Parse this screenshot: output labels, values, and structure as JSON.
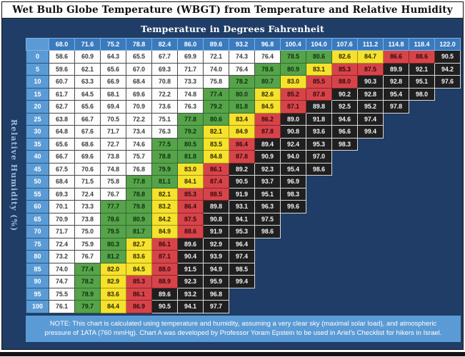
{
  "title": "Wet Bulb Globe Temperature (WBGT) from Temperature and Relative Humidity",
  "note": "NOTE: This chart is calculated using temperature and humidity, assuming a very clear sky (maximal solar load), and atmospheric pressure of 1ATA (760 mmHg). Chart A was developed by Professor Yoram Epstein to be used in Ariel's Checklist for hikers in Israel.",
  "colors": {
    "navy_background": "#1F3D66",
    "row_header_blue": "#5B9BD5",
    "column_header_blue": "#3A7ABD",
    "note_background": "#5B9BD5",
    "cell_white": "#FDFDFD",
    "cell_green": "#56A34A",
    "cell_yellow": "#F6E12D",
    "cell_red": "#D6444A",
    "cell_black": "#1F1F1F"
  },
  "chart_data": {
    "type": "table",
    "title": "Wet Bulb Globe Temperature (WBGT) from Temperature and Relative Humidity",
    "x_header": "Temperature in Degrees Fahrenheit",
    "y_header": "Relative Humidity (%)",
    "color_key": {
      "w": "#FDFDFD",
      "g": "#56A34A",
      "y": "#F6E12D",
      "r": "#D6444A",
      "k": "#1F1F1F"
    },
    "columns_f": [
      "68.0",
      "71.6",
      "75.2",
      "78.8",
      "82.4",
      "86.0",
      "89.6",
      "93.2",
      "96.8",
      "100.4",
      "104.0",
      "107.6",
      "111.2",
      "114.8",
      "118.4",
      "122.0"
    ],
    "rows": [
      {
        "rh": "0",
        "cells": [
          [
            "58.6",
            "w"
          ],
          [
            "60.9",
            "w"
          ],
          [
            "64.3",
            "w"
          ],
          [
            "65.5",
            "w"
          ],
          [
            "67.7",
            "w"
          ],
          [
            "69.9",
            "w"
          ],
          [
            "72.1",
            "w"
          ],
          [
            "74.3",
            "w"
          ],
          [
            "76.4",
            "w"
          ],
          [
            "78.5",
            "g"
          ],
          [
            "80.6",
            "g"
          ],
          [
            "82.6",
            "y"
          ],
          [
            "84.7",
            "y"
          ],
          [
            "86.6",
            "r"
          ],
          [
            "88.6",
            "r"
          ],
          [
            "90.5",
            "k"
          ]
        ]
      },
      {
        "rh": "5",
        "cells": [
          [
            "59.6",
            "w"
          ],
          [
            "62.1",
            "w"
          ],
          [
            "65.6",
            "w"
          ],
          [
            "67.0",
            "w"
          ],
          [
            "69.3",
            "w"
          ],
          [
            "71.7",
            "w"
          ],
          [
            "74.0",
            "w"
          ],
          [
            "76.4",
            "w"
          ],
          [
            "78.6",
            "g"
          ],
          [
            "80.9",
            "g"
          ],
          [
            "83.1",
            "y"
          ],
          [
            "85.3",
            "r"
          ],
          [
            "87.5",
            "r"
          ],
          [
            "89.9",
            "k"
          ],
          [
            "92.1",
            "k"
          ],
          [
            "94.2",
            "k"
          ]
        ]
      },
      {
        "rh": "10",
        "cells": [
          [
            "60.7",
            "w"
          ],
          [
            "63.3",
            "w"
          ],
          [
            "66.9",
            "w"
          ],
          [
            "68.4",
            "w"
          ],
          [
            "70.8",
            "w"
          ],
          [
            "73.3",
            "w"
          ],
          [
            "75.8",
            "w"
          ],
          [
            "78.2",
            "g"
          ],
          [
            "80.7",
            "g"
          ],
          [
            "83.0",
            "y"
          ],
          [
            "85.5",
            "r"
          ],
          [
            "88.0",
            "r"
          ],
          [
            "90.3",
            "k"
          ],
          [
            "92.8",
            "k"
          ],
          [
            "95.1",
            "k"
          ],
          [
            "97.6",
            "k"
          ]
        ]
      },
      {
        "rh": "15",
        "cells": [
          [
            "61.7",
            "w"
          ],
          [
            "64.5",
            "w"
          ],
          [
            "68.1",
            "w"
          ],
          [
            "69.6",
            "w"
          ],
          [
            "72.2",
            "w"
          ],
          [
            "74.8",
            "w"
          ],
          [
            "77.4",
            "g"
          ],
          [
            "80.0",
            "g"
          ],
          [
            "82.6",
            "y"
          ],
          [
            "85.2",
            "r"
          ],
          [
            "87.8",
            "r"
          ],
          [
            "90.2",
            "k"
          ],
          [
            "92.8",
            "k"
          ],
          [
            "95.4",
            "k"
          ],
          [
            "98.0",
            "k"
          ]
        ]
      },
      {
        "rh": "20",
        "cells": [
          [
            "62.7",
            "w"
          ],
          [
            "65.6",
            "w"
          ],
          [
            "69.4",
            "w"
          ],
          [
            "70.9",
            "w"
          ],
          [
            "73.6",
            "w"
          ],
          [
            "76.3",
            "w"
          ],
          [
            "79.2",
            "g"
          ],
          [
            "81.8",
            "g"
          ],
          [
            "84.5",
            "y"
          ],
          [
            "87.1",
            "r"
          ],
          [
            "89.8",
            "k"
          ],
          [
            "92.5",
            "k"
          ],
          [
            "95.2",
            "k"
          ],
          [
            "97.8",
            "k"
          ]
        ]
      },
      {
        "rh": "25",
        "cells": [
          [
            "63.8",
            "w"
          ],
          [
            "66.7",
            "w"
          ],
          [
            "70.5",
            "w"
          ],
          [
            "72.2",
            "w"
          ],
          [
            "75.1",
            "w"
          ],
          [
            "77.8",
            "g"
          ],
          [
            "80.6",
            "g"
          ],
          [
            "83.4",
            "y"
          ],
          [
            "86.2",
            "r"
          ],
          [
            "89.0",
            "k"
          ],
          [
            "91.8",
            "k"
          ],
          [
            "94.6",
            "k"
          ],
          [
            "97.4",
            "k"
          ]
        ]
      },
      {
        "rh": "30",
        "cells": [
          [
            "64.8",
            "w"
          ],
          [
            "67.6",
            "w"
          ],
          [
            "71.7",
            "w"
          ],
          [
            "73.4",
            "w"
          ],
          [
            "76.3",
            "w"
          ],
          [
            "79.2",
            "g"
          ],
          [
            "82.1",
            "y"
          ],
          [
            "84.9",
            "y"
          ],
          [
            "87.8",
            "r"
          ],
          [
            "90.8",
            "k"
          ],
          [
            "93.6",
            "k"
          ],
          [
            "96.6",
            "k"
          ],
          [
            "99.4",
            "k"
          ]
        ]
      },
      {
        "rh": "35",
        "cells": [
          [
            "65.6",
            "w"
          ],
          [
            "68.6",
            "w"
          ],
          [
            "72.7",
            "w"
          ],
          [
            "74.6",
            "w"
          ],
          [
            "77.5",
            "g"
          ],
          [
            "80.5",
            "g"
          ],
          [
            "83.5",
            "y"
          ],
          [
            "86.4",
            "r"
          ],
          [
            "89.4",
            "k"
          ],
          [
            "92.4",
            "k"
          ],
          [
            "95.3",
            "k"
          ],
          [
            "98.3",
            "k"
          ]
        ]
      },
      {
        "rh": "40",
        "cells": [
          [
            "66.7",
            "w"
          ],
          [
            "69.6",
            "w"
          ],
          [
            "73.8",
            "w"
          ],
          [
            "75.7",
            "w"
          ],
          [
            "78.8",
            "g"
          ],
          [
            "81.8",
            "g"
          ],
          [
            "84.8",
            "y"
          ],
          [
            "87.8",
            "r"
          ],
          [
            "90.9",
            "k"
          ],
          [
            "94.0",
            "k"
          ],
          [
            "97.0",
            "k"
          ]
        ]
      },
      {
        "rh": "45",
        "cells": [
          [
            "67.5",
            "w"
          ],
          [
            "70.6",
            "w"
          ],
          [
            "74.8",
            "w"
          ],
          [
            "76.8",
            "w"
          ],
          [
            "79.9",
            "g"
          ],
          [
            "83.0",
            "y"
          ],
          [
            "86.1",
            "r"
          ],
          [
            "89.2",
            "k"
          ],
          [
            "92.3",
            "k"
          ],
          [
            "95.4",
            "k"
          ],
          [
            "98.6",
            "k"
          ]
        ]
      },
      {
        "rh": "50",
        "cells": [
          [
            "68.4",
            "w"
          ],
          [
            "71.5",
            "w"
          ],
          [
            "75.8",
            "w"
          ],
          [
            "77.8",
            "g"
          ],
          [
            "81.1",
            "g"
          ],
          [
            "84.1",
            "y"
          ],
          [
            "87.4",
            "r"
          ],
          [
            "90.5",
            "k"
          ],
          [
            "93.7",
            "k"
          ],
          [
            "96.9",
            "k"
          ]
        ]
      },
      {
        "rh": "55",
        "cells": [
          [
            "69.3",
            "w"
          ],
          [
            "72.4",
            "w"
          ],
          [
            "76.7",
            "w"
          ],
          [
            "78.8",
            "g"
          ],
          [
            "82.1",
            "y"
          ],
          [
            "85.3",
            "r"
          ],
          [
            "88.5",
            "r"
          ],
          [
            "91.9",
            "k"
          ],
          [
            "95.1",
            "k"
          ],
          [
            "98.3",
            "k"
          ]
        ]
      },
      {
        "rh": "60",
        "cells": [
          [
            "70.1",
            "w"
          ],
          [
            "73.3",
            "w"
          ],
          [
            "77.7",
            "g"
          ],
          [
            "79.8",
            "g"
          ],
          [
            "83.2",
            "y"
          ],
          [
            "86.4",
            "r"
          ],
          [
            "89.8",
            "k"
          ],
          [
            "93.1",
            "k"
          ],
          [
            "96.3",
            "k"
          ],
          [
            "99.6",
            "k"
          ]
        ]
      },
      {
        "rh": "65",
        "cells": [
          [
            "70.9",
            "w"
          ],
          [
            "73.8",
            "w"
          ],
          [
            "78.6",
            "g"
          ],
          [
            "80.9",
            "g"
          ],
          [
            "84.2",
            "y"
          ],
          [
            "87.5",
            "r"
          ],
          [
            "90.8",
            "k"
          ],
          [
            "94.1",
            "k"
          ],
          [
            "97.5",
            "k"
          ]
        ]
      },
      {
        "rh": "70",
        "cells": [
          [
            "71.7",
            "w"
          ],
          [
            "75.0",
            "w"
          ],
          [
            "79.5",
            "g"
          ],
          [
            "81.7",
            "g"
          ],
          [
            "84.9",
            "y"
          ],
          [
            "88.6",
            "r"
          ],
          [
            "91.9",
            "k"
          ],
          [
            "95.3",
            "k"
          ],
          [
            "98.6",
            "k"
          ]
        ]
      },
      {
        "rh": "75",
        "cells": [
          [
            "72.4",
            "w"
          ],
          [
            "75.9",
            "w"
          ],
          [
            "80.3",
            "g"
          ],
          [
            "82.7",
            "y"
          ],
          [
            "86.1",
            "r"
          ],
          [
            "89.6",
            "k"
          ],
          [
            "92.9",
            "k"
          ],
          [
            "96.4",
            "k"
          ]
        ]
      },
      {
        "rh": "80",
        "cells": [
          [
            "73.2",
            "w"
          ],
          [
            "76.7",
            "w"
          ],
          [
            "81.2",
            "g"
          ],
          [
            "83.6",
            "y"
          ],
          [
            "87.1",
            "r"
          ],
          [
            "90.4",
            "k"
          ],
          [
            "93.9",
            "k"
          ],
          [
            "97.4",
            "k"
          ]
        ]
      },
      {
        "rh": "85",
        "cells": [
          [
            "74.0",
            "w"
          ],
          [
            "77.4",
            "g"
          ],
          [
            "82.0",
            "y"
          ],
          [
            "84.5",
            "y"
          ],
          [
            "88.0",
            "r"
          ],
          [
            "91.5",
            "k"
          ],
          [
            "94.9",
            "k"
          ],
          [
            "98.5",
            "k"
          ]
        ]
      },
      {
        "rh": "90",
        "cells": [
          [
            "74.7",
            "w"
          ],
          [
            "78.2",
            "g"
          ],
          [
            "82.9",
            "y"
          ],
          [
            "85.3",
            "r"
          ],
          [
            "88.9",
            "r"
          ],
          [
            "92.3",
            "k"
          ],
          [
            "95.9",
            "k"
          ],
          [
            "99.4",
            "k"
          ]
        ]
      },
      {
        "rh": "95",
        "cells": [
          [
            "75.5",
            "w"
          ],
          [
            "78.9",
            "g"
          ],
          [
            "83.6",
            "y"
          ],
          [
            "86.1",
            "r"
          ],
          [
            "89.6",
            "k"
          ],
          [
            "93.2",
            "k"
          ],
          [
            "96.8",
            "k"
          ]
        ]
      },
      {
        "rh": "100",
        "cells": [
          [
            "76.1",
            "w"
          ],
          [
            "79.7",
            "g"
          ],
          [
            "84.4",
            "y"
          ],
          [
            "86.9",
            "r"
          ],
          [
            "90.5",
            "k"
          ],
          [
            "94.1",
            "k"
          ],
          [
            "97.7",
            "k"
          ]
        ]
      }
    ]
  }
}
